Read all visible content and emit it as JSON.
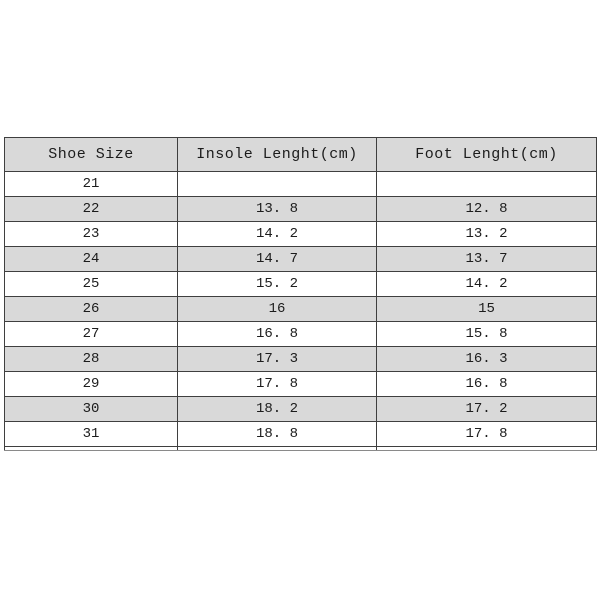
{
  "table": {
    "headers": {
      "shoe_size": "Shoe Size",
      "insole": "Insole Lenght(cm)",
      "foot": "Foot Lenght(cm)"
    },
    "rows": [
      {
        "size": "21",
        "insole": "",
        "foot": ""
      },
      {
        "size": "22",
        "insole": "13. 8",
        "foot": "12. 8"
      },
      {
        "size": "23",
        "insole": "14. 2",
        "foot": "13. 2"
      },
      {
        "size": "24",
        "insole": "14. 7",
        "foot": "13. 7"
      },
      {
        "size": "25",
        "insole": "15. 2",
        "foot": "14. 2"
      },
      {
        "size": "26",
        "insole": "16",
        "foot": "15"
      },
      {
        "size": "27",
        "insole": "16. 8",
        "foot": "15. 8"
      },
      {
        "size": "28",
        "insole": "17. 3",
        "foot": "16. 3"
      },
      {
        "size": "29",
        "insole": "17. 8",
        "foot": "16. 8"
      },
      {
        "size": "30",
        "insole": "18. 2",
        "foot": "17. 2"
      },
      {
        "size": "31",
        "insole": "18. 8",
        "foot": "17. 8"
      }
    ],
    "colors": {
      "header_bg": "#d9d9d9",
      "stripe_bg": "#d9d9d9",
      "border": "#3f3f3f",
      "text": "#1c1c1c",
      "background": "#ffffff"
    }
  },
  "chart_data": {
    "type": "table",
    "title": "",
    "columns": [
      "Shoe Size",
      "Insole Lenght(cm)",
      "Foot Lenght(cm)"
    ],
    "rows": [
      [
        21,
        null,
        null
      ],
      [
        22,
        13.8,
        12.8
      ],
      [
        23,
        14.2,
        13.2
      ],
      [
        24,
        14.7,
        13.7
      ],
      [
        25,
        15.2,
        14.2
      ],
      [
        26,
        16,
        15
      ],
      [
        27,
        16.8,
        15.8
      ],
      [
        28,
        17.3,
        16.3
      ],
      [
        29,
        17.8,
        16.8
      ],
      [
        30,
        18.2,
        17.2
      ],
      [
        31,
        18.8,
        17.8
      ]
    ]
  }
}
